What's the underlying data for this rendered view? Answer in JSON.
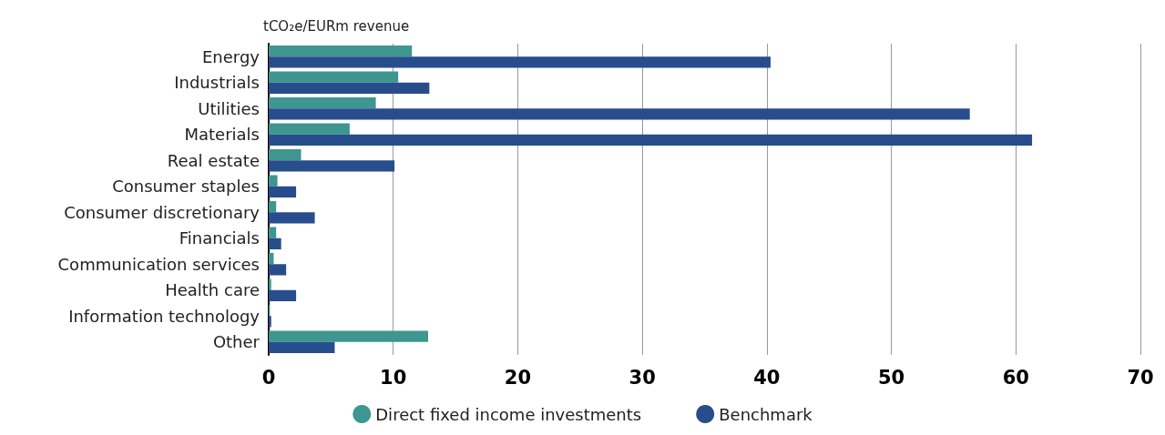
{
  "chart_data": {
    "type": "bar",
    "orientation": "horizontal",
    "ylabel": "tCO₂e/EURm revenue",
    "categories": [
      "Energy",
      "Industrials",
      "Utilities",
      "Materials",
      "Real estate",
      "Consumer staples",
      "Consumer discretionary",
      "Financials",
      "Communication services",
      "Health care",
      "Information technology",
      "Other"
    ],
    "series": [
      {
        "name": "Direct fixed income investments",
        "color": "#3d9690",
        "values": [
          11.5,
          10.4,
          8.6,
          6.5,
          2.6,
          0.7,
          0.6,
          0.6,
          0.4,
          0.2,
          0.1,
          12.8
        ]
      },
      {
        "name": "Benchmark",
        "color": "#284d8c",
        "values": [
          40.3,
          12.9,
          56.3,
          61.3,
          10.1,
          2.2,
          3.7,
          1.0,
          1.4,
          2.2,
          0.2,
          5.3
        ]
      }
    ],
    "xlim": [
      0,
      70
    ],
    "xticks": [
      0,
      10,
      20,
      30,
      40,
      50,
      60,
      70
    ],
    "grid": "x",
    "legend": "bottom"
  }
}
